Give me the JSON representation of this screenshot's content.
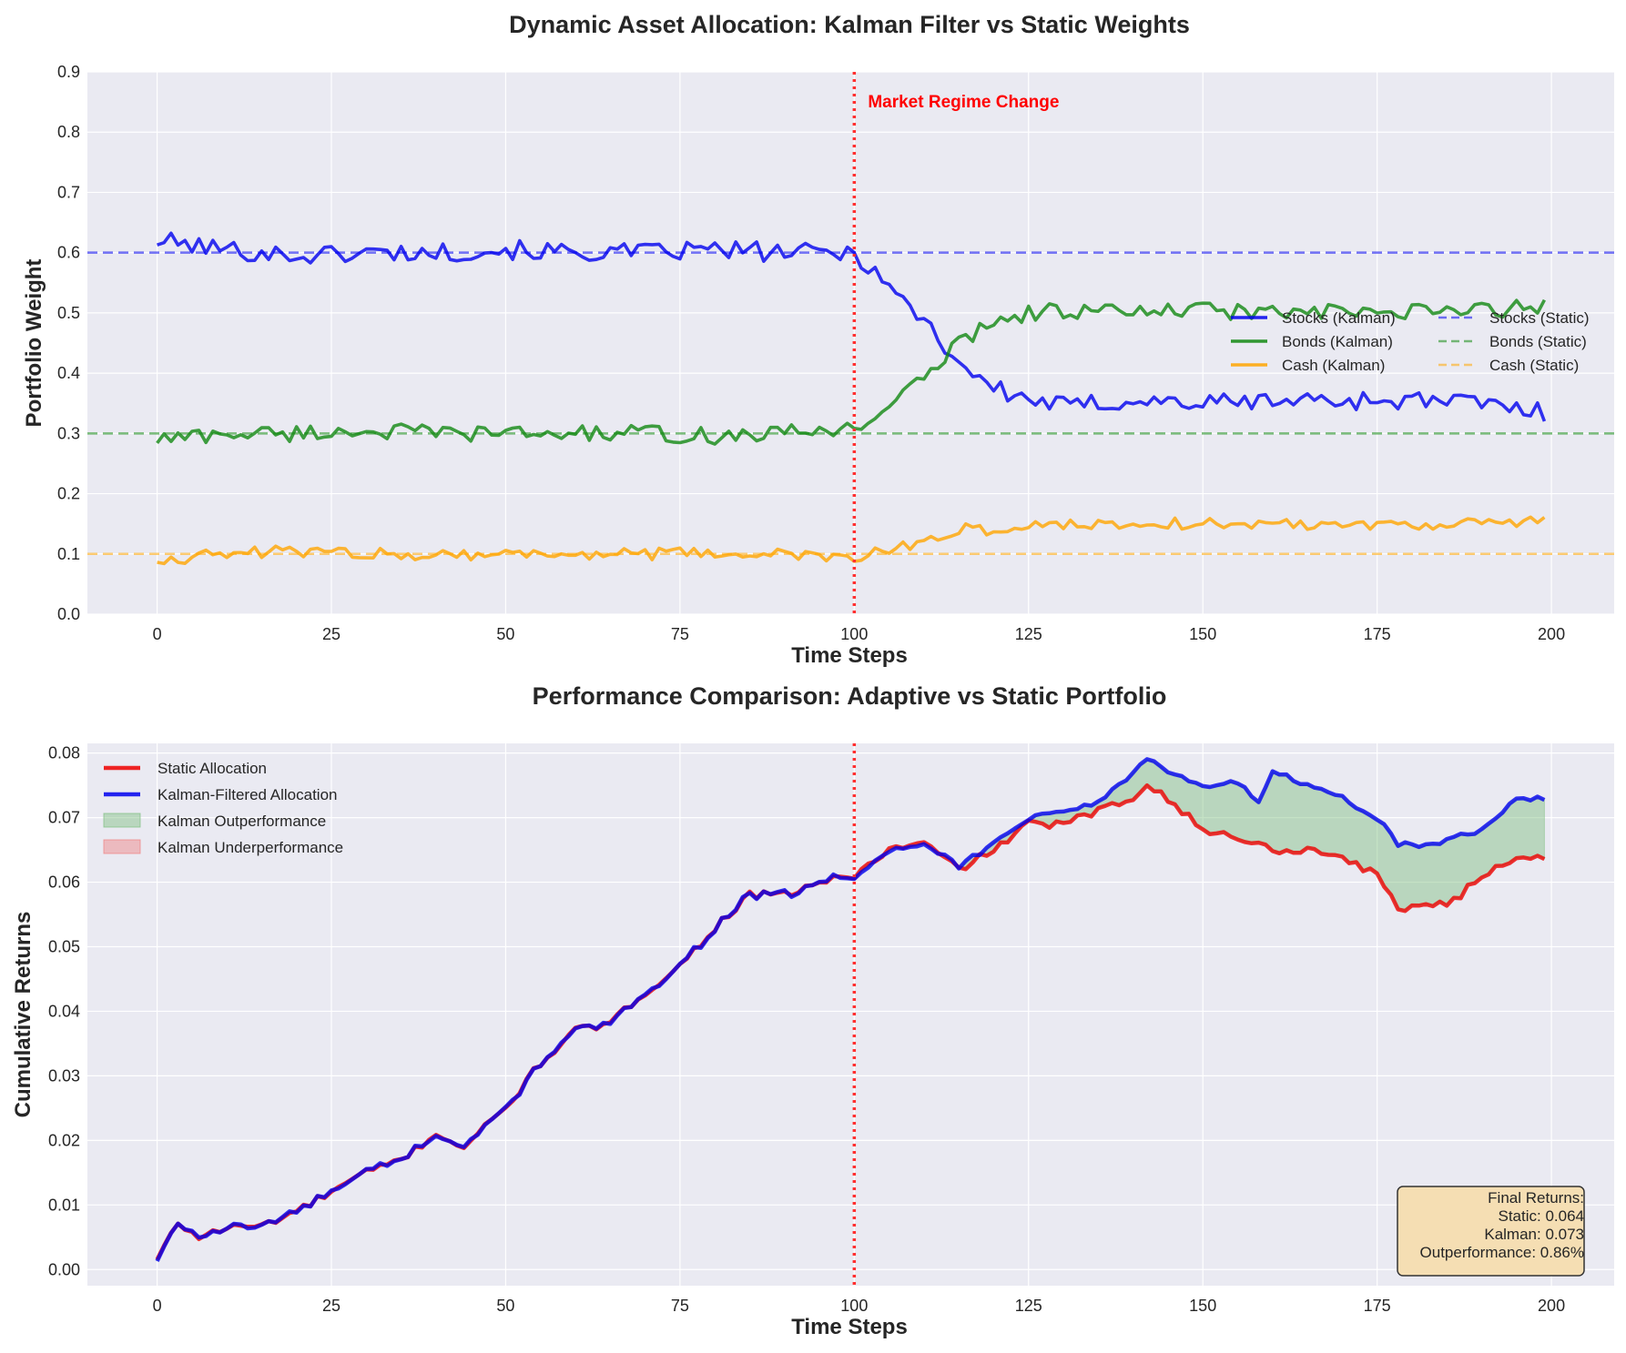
{
  "colors": {
    "stocks": "#0000ee",
    "bonds": "#118811",
    "cash": "#ffa500",
    "static_line": "#ee0000",
    "kalman_line": "#0000ee",
    "outperf_fill": "#7fbf7f",
    "underperf_fill": "#f08080",
    "regime": "#ff3030",
    "axes_bg": "#eaeaf2",
    "stats_box": "#f5deb3"
  },
  "chart_data": [
    {
      "type": "line",
      "title": "Dynamic Asset Allocation: Kalman Filter vs Static Weights",
      "xlabel": "Time Steps",
      "ylabel": "Portfolio Weight",
      "xlim": [
        -10,
        209
      ],
      "ylim": [
        0,
        0.9
      ],
      "xticks": [
        0,
        25,
        50,
        75,
        100,
        125,
        150,
        175,
        200
      ],
      "yticks": [
        0.0,
        0.1,
        0.2,
        0.3,
        0.4,
        0.5,
        0.6,
        0.7,
        0.8,
        0.9
      ],
      "grid": true,
      "legend_position": "center-right",
      "series": [
        {
          "name": "Stocks (Kalman)",
          "style": "solid",
          "anchors": [
            [
              0,
              0.62
            ],
            [
              10,
              0.605
            ],
            [
              20,
              0.595
            ],
            [
              30,
              0.6
            ],
            [
              40,
              0.6
            ],
            [
              50,
              0.605
            ],
            [
              60,
              0.6
            ],
            [
              70,
              0.6
            ],
            [
              80,
              0.605
            ],
            [
              90,
              0.6
            ],
            [
              100,
              0.6
            ],
            [
              103,
              0.57
            ],
            [
              106,
              0.53
            ],
            [
              110,
              0.49
            ],
            [
              114,
              0.43
            ],
            [
              118,
              0.39
            ],
            [
              122,
              0.365
            ],
            [
              130,
              0.345
            ],
            [
              140,
              0.355
            ],
            [
              150,
              0.35
            ],
            [
              160,
              0.355
            ],
            [
              170,
              0.355
            ],
            [
              180,
              0.355
            ],
            [
              190,
              0.35
            ],
            [
              199,
              0.335
            ]
          ],
          "noise": 0.016
        },
        {
          "name": "Bonds (Kalman)",
          "style": "solid",
          "anchors": [
            [
              0,
              0.29
            ],
            [
              10,
              0.3
            ],
            [
              20,
              0.3
            ],
            [
              30,
              0.305
            ],
            [
              40,
              0.3
            ],
            [
              50,
              0.3
            ],
            [
              60,
              0.3
            ],
            [
              70,
              0.3
            ],
            [
              80,
              0.295
            ],
            [
              90,
              0.3
            ],
            [
              100,
              0.31
            ],
            [
              103,
              0.33
            ],
            [
              106,
              0.355
            ],
            [
              110,
              0.39
            ],
            [
              114,
              0.44
            ],
            [
              118,
              0.475
            ],
            [
              122,
              0.495
            ],
            [
              130,
              0.505
            ],
            [
              140,
              0.5
            ],
            [
              150,
              0.505
            ],
            [
              160,
              0.5
            ],
            [
              170,
              0.5
            ],
            [
              180,
              0.5
            ],
            [
              190,
              0.505
            ],
            [
              199,
              0.51
            ]
          ],
          "noise": 0.014
        },
        {
          "name": "Cash (Kalman)",
          "style": "solid",
          "anchors": [
            [
              0,
              0.09
            ],
            [
              10,
              0.1
            ],
            [
              20,
              0.105
            ],
            [
              30,
              0.1
            ],
            [
              40,
              0.1
            ],
            [
              50,
              0.1
            ],
            [
              60,
              0.1
            ],
            [
              70,
              0.1
            ],
            [
              80,
              0.1
            ],
            [
              90,
              0.1
            ],
            [
              100,
              0.09
            ],
            [
              104,
              0.105
            ],
            [
              108,
              0.115
            ],
            [
              112,
              0.13
            ],
            [
              116,
              0.14
            ],
            [
              120,
              0.14
            ],
            [
              130,
              0.15
            ],
            [
              140,
              0.15
            ],
            [
              150,
              0.15
            ],
            [
              160,
              0.15
            ],
            [
              170,
              0.15
            ],
            [
              180,
              0.15
            ],
            [
              190,
              0.15
            ],
            [
              199,
              0.155
            ]
          ],
          "noise": 0.01
        },
        {
          "name": "Stocks (Static)",
          "style": "dashed",
          "value": 0.6
        },
        {
          "name": "Bonds (Static)",
          "style": "dashed",
          "value": 0.3
        },
        {
          "name": "Cash (Static)",
          "style": "dashed",
          "value": 0.1
        }
      ],
      "annotations": [
        {
          "text": "Market Regime Change",
          "x": 100
        }
      ]
    },
    {
      "type": "line",
      "title": "Performance Comparison: Adaptive vs Static Portfolio",
      "xlabel": "Time Steps",
      "ylabel": "Cumulative Returns",
      "xlim": [
        -10,
        209
      ],
      "ylim": [
        -0.0025,
        0.0815
      ],
      "xticks": [
        0,
        25,
        50,
        75,
        100,
        125,
        150,
        175,
        200
      ],
      "yticks": [
        0.0,
        0.01,
        0.02,
        0.03,
        0.04,
        0.05,
        0.06,
        0.07,
        0.08
      ],
      "grid": true,
      "legend_position": "upper-left",
      "series": [
        {
          "name": "Static Allocation",
          "anchors": [
            [
              0,
              0.0015
            ],
            [
              3,
              0.0072
            ],
            [
              6,
              0.005
            ],
            [
              10,
              0.0065
            ],
            [
              15,
              0.0068
            ],
            [
              20,
              0.009
            ],
            [
              25,
              0.012
            ],
            [
              30,
              0.015
            ],
            [
              35,
              0.017
            ],
            [
              40,
              0.021
            ],
            [
              44,
              0.019
            ],
            [
              50,
              0.025
            ],
            [
              55,
              0.032
            ],
            [
              60,
              0.037
            ],
            [
              65,
              0.038
            ],
            [
              70,
              0.043
            ],
            [
              75,
              0.047
            ],
            [
              80,
              0.053
            ],
            [
              85,
              0.058
            ],
            [
              90,
              0.058
            ],
            [
              95,
              0.06
            ],
            [
              100,
              0.061
            ],
            [
              105,
              0.065
            ],
            [
              110,
              0.066
            ],
            [
              115,
              0.062
            ],
            [
              120,
              0.065
            ],
            [
              125,
              0.069
            ],
            [
              130,
              0.069
            ],
            [
              135,
              0.071
            ],
            [
              140,
              0.073
            ],
            [
              142,
              0.0755
            ],
            [
              145,
              0.073
            ],
            [
              150,
              0.068
            ],
            [
              155,
              0.067
            ],
            [
              160,
              0.065
            ],
            [
              165,
              0.065
            ],
            [
              170,
              0.064
            ],
            [
              175,
              0.061
            ],
            [
              178,
              0.056
            ],
            [
              182,
              0.0565
            ],
            [
              186,
              0.057
            ],
            [
              190,
              0.061
            ],
            [
              195,
              0.064
            ],
            [
              199,
              0.064
            ]
          ],
          "noise": 0.0006
        },
        {
          "name": "Kalman-Filtered Allocation",
          "anchors": [
            [
              0,
              0.0015
            ],
            [
              3,
              0.0072
            ],
            [
              6,
              0.005
            ],
            [
              10,
              0.0065
            ],
            [
              15,
              0.0068
            ],
            [
              20,
              0.009
            ],
            [
              25,
              0.012
            ],
            [
              30,
              0.015
            ],
            [
              35,
              0.017
            ],
            [
              40,
              0.021
            ],
            [
              44,
              0.019
            ],
            [
              50,
              0.025
            ],
            [
              55,
              0.032
            ],
            [
              60,
              0.037
            ],
            [
              65,
              0.038
            ],
            [
              70,
              0.043
            ],
            [
              75,
              0.047
            ],
            [
              80,
              0.053
            ],
            [
              85,
              0.058
            ],
            [
              90,
              0.058
            ],
            [
              95,
              0.06
            ],
            [
              100,
              0.061
            ],
            [
              105,
              0.065
            ],
            [
              110,
              0.066
            ],
            [
              115,
              0.0625
            ],
            [
              120,
              0.066
            ],
            [
              125,
              0.07
            ],
            [
              130,
              0.071
            ],
            [
              135,
              0.0725
            ],
            [
              140,
              0.077
            ],
            [
              142,
              0.079
            ],
            [
              145,
              0.077
            ],
            [
              150,
              0.075
            ],
            [
              155,
              0.0755
            ],
            [
              158,
              0.072
            ],
            [
              160,
              0.0775
            ],
            [
              165,
              0.075
            ],
            [
              170,
              0.073
            ],
            [
              175,
              0.07
            ],
            [
              178,
              0.066
            ],
            [
              182,
              0.0655
            ],
            [
              186,
              0.067
            ],
            [
              190,
              0.068
            ],
            [
              195,
              0.073
            ],
            [
              199,
              0.0728
            ]
          ],
          "noise": 0.0004
        },
        {
          "name": "Kalman Outperformance",
          "kind": "fill"
        },
        {
          "name": "Kalman Underperformance",
          "kind": "fill"
        }
      ],
      "stats_box": {
        "title": "Final Returns:",
        "static": "Static: 0.064",
        "kalman": "Kalman: 0.073",
        "outperf": "Outperformance: 0.86%"
      }
    }
  ]
}
